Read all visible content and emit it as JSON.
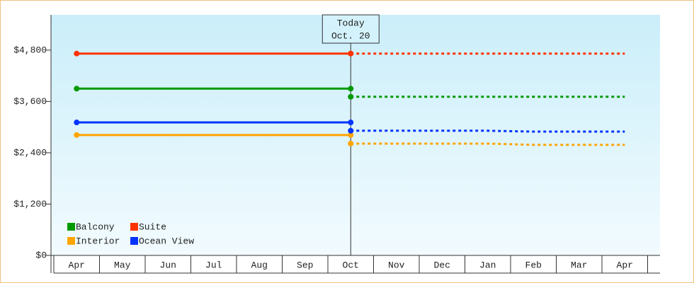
{
  "chart_data": {
    "type": "line",
    "annotation": [
      "Today",
      "Oct. 20"
    ],
    "categories": [
      "Apr",
      "May",
      "Jun",
      "Jul",
      "Aug",
      "Sep",
      "Oct",
      "Nov",
      "Dec",
      "Jan",
      "Feb",
      "Mar",
      "Apr"
    ],
    "ylim": [
      0,
      5625
    ],
    "yticks": [
      {
        "value": 0,
        "label": "$0"
      },
      {
        "value": 1200,
        "label": "$1,200"
      },
      {
        "value": 2400,
        "label": "$2,400"
      },
      {
        "value": 3600,
        "label": "$3,600"
      },
      {
        "value": 4800,
        "label": "$4,800"
      }
    ],
    "series": [
      {
        "name": "Balcony",
        "color": "#009900",
        "values": [
          3900,
          3900,
          3900,
          3900,
          3900,
          3900,
          3900,
          null,
          null,
          null,
          null,
          null,
          null
        ],
        "forecast_values": [
          null,
          null,
          null,
          null,
          null,
          null,
          3710,
          3710,
          3710,
          3710,
          3710,
          3710,
          3710
        ]
      },
      {
        "name": "Suite",
        "color": "#ff3300",
        "values": [
          4720,
          4720,
          4720,
          4720,
          4720,
          4720,
          4720,
          null,
          null,
          null,
          null,
          null,
          null
        ],
        "forecast_values": [
          null,
          null,
          null,
          null,
          null,
          null,
          4720,
          4720,
          4720,
          4720,
          4720,
          4720,
          4720
        ]
      },
      {
        "name": "Interior",
        "color": "#ffa500",
        "values": [
          2815,
          2815,
          2815,
          2815,
          2815,
          2815,
          2815,
          null,
          null,
          null,
          null,
          null,
          null
        ],
        "forecast_values": [
          null,
          null,
          null,
          null,
          null,
          null,
          2615,
          2615,
          2615,
          2615,
          2585,
          2585,
          2585
        ]
      },
      {
        "name": "Ocean View",
        "color": "#0033ff",
        "values": [
          3110,
          3110,
          3110,
          3110,
          3110,
          3110,
          3110,
          null,
          null,
          null,
          null,
          null,
          null
        ],
        "forecast_values": [
          null,
          null,
          null,
          null,
          null,
          null,
          2915,
          2915,
          2915,
          2915,
          2895,
          2895,
          2895
        ]
      }
    ]
  }
}
